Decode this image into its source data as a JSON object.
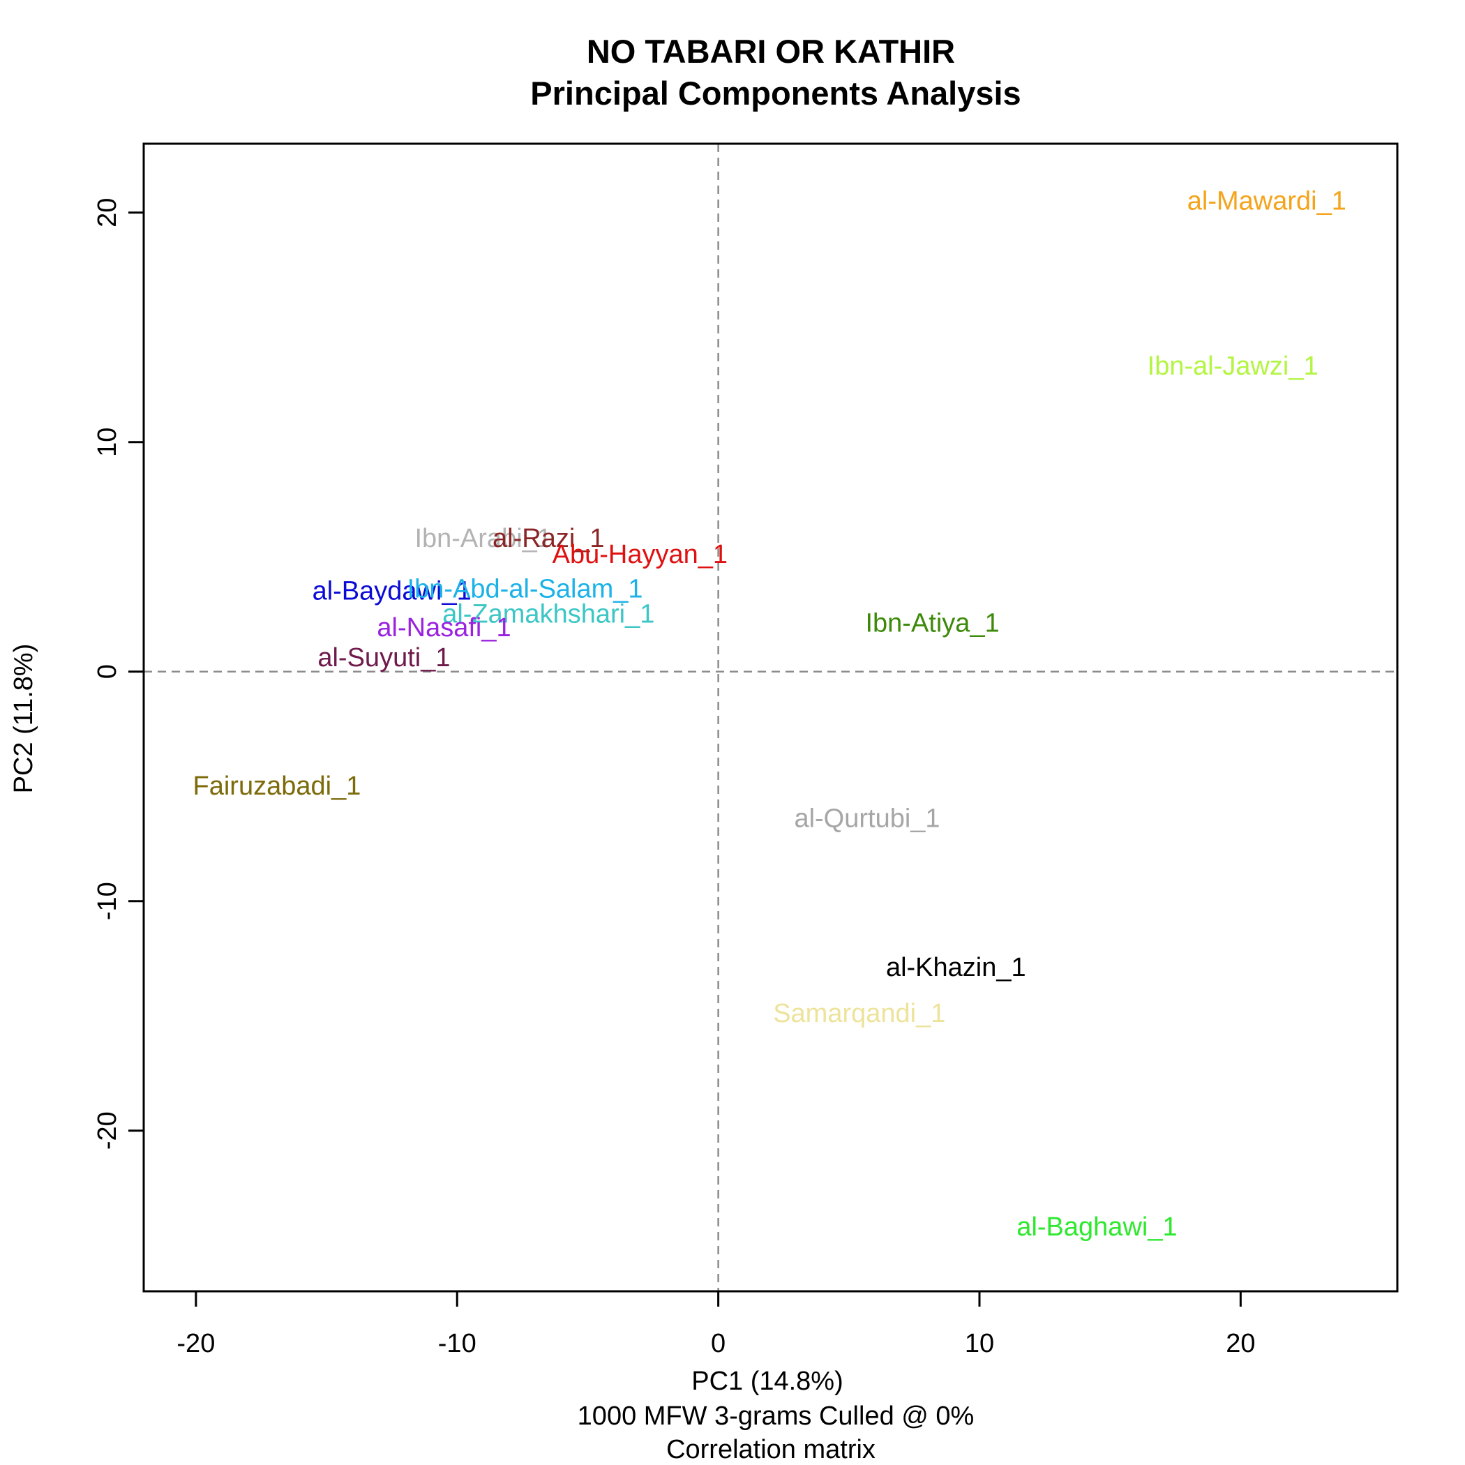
{
  "chart_data": {
    "type": "scatter",
    "title": "NO TABARI OR KATHIR",
    "subtitle": "Principal Components Analysis",
    "xlabel": "PC1 (14.8%)",
    "xlabel_sub1": "1000 MFW 3-grams Culled @ 0%",
    "xlabel_sub2": "Correlation matrix",
    "ylabel": "PC2 (11.8%)",
    "xlim": [
      -22,
      26
    ],
    "ylim": [
      -27,
      23
    ],
    "xticks": [
      -20,
      -10,
      0,
      10,
      20
    ],
    "yticks": [
      -20,
      -10,
      0,
      10,
      20
    ],
    "xtick_labels": [
      "-20",
      "-10",
      "0",
      "10",
      "20"
    ],
    "ytick_labels": [
      "-20",
      "-10",
      "0",
      "10",
      "20"
    ],
    "grid": false,
    "reference_lines": {
      "x": 0,
      "y": 0,
      "style": "dashed"
    },
    "points": [
      {
        "label": "al-Mawardi_1",
        "x": 21.0,
        "y": 20.5,
        "color": "#f5a31a"
      },
      {
        "label": "Ibn-al-Jawzi_1",
        "x": 19.7,
        "y": 13.3,
        "color": "#b3f542"
      },
      {
        "label": "Ibn-Arabi_1",
        "x": -9.0,
        "y": 5.8,
        "color": "#b3b3b3"
      },
      {
        "label": "al-Razi_1",
        "x": -6.5,
        "y": 5.8,
        "color": "#8b2525"
      },
      {
        "label": "Abu-Hayyan_1",
        "x": -3.0,
        "y": 5.1,
        "color": "#e01010"
      },
      {
        "label": "al-Baydawi_1",
        "x": -12.5,
        "y": 3.5,
        "color": "#0a0ad6"
      },
      {
        "label": "Ibn-Abd-al-Salam_1",
        "x": -7.4,
        "y": 3.6,
        "color": "#1ab2e8"
      },
      {
        "label": "al-Zamakhshari_1",
        "x": -6.5,
        "y": 2.5,
        "color": "#3cc6c6"
      },
      {
        "label": "al-Nasafi_1",
        "x": -10.5,
        "y": 1.9,
        "color": "#9a22e0"
      },
      {
        "label": "Ibn-Atiya_1",
        "x": 8.2,
        "y": 2.1,
        "color": "#3d8a0a"
      },
      {
        "label": "al-Suyuti_1",
        "x": -12.8,
        "y": 0.6,
        "color": "#6e1a4b"
      },
      {
        "label": "Fairuzabadi_1",
        "x": -16.9,
        "y": -5.0,
        "color": "#7d6a0a"
      },
      {
        "label": "al-Qurtubi_1",
        "x": 5.7,
        "y": -6.4,
        "color": "#a6a6a6"
      },
      {
        "label": "al-Khazin_1",
        "x": 9.1,
        "y": -12.9,
        "color": "#000000"
      },
      {
        "label": "Samarqandi_1",
        "x": 5.4,
        "y": -14.9,
        "color": "#ede39a"
      },
      {
        "label": "al-Baghawi_1",
        "x": 14.5,
        "y": -24.2,
        "color": "#2ee82e"
      }
    ]
  }
}
